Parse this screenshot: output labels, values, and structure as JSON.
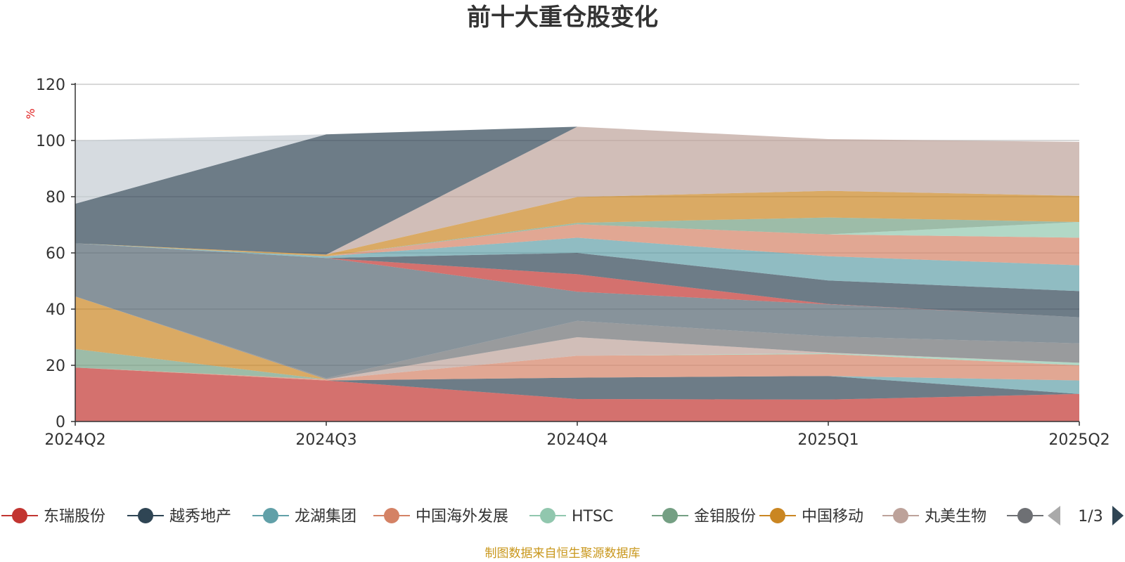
{
  "chart_data": {
    "type": "area",
    "stacked": true,
    "title": "前十大重仓股变化",
    "ylabel": "%",
    "ylim": [
      0,
      120
    ],
    "yticks": [
      0,
      20,
      40,
      60,
      80,
      100,
      120
    ],
    "grid": true,
    "categories": [
      "2024Q2",
      "2024Q3",
      "2024Q4",
      "2025Q1",
      "2025Q2"
    ],
    "series": [
      {
        "name": "东瑞股份",
        "color": "#c23531",
        "values": [
          19.2,
          14.6,
          8.0,
          7.8,
          9.8
        ]
      },
      {
        "name": "越秀地产",
        "color": "#2f4554",
        "values": [
          0,
          0,
          7.6,
          8.4,
          0
        ]
      },
      {
        "name": "龙湖集团",
        "color": "#61a0a8",
        "values": [
          0,
          0,
          0,
          0,
          4.8
        ]
      },
      {
        "name": "中国海外发展",
        "color": "#d48265",
        "values": [
          0,
          0.4,
          7.8,
          7.8,
          5.4
        ]
      },
      {
        "name": "HTSC",
        "color": "#91c7ae",
        "values": [
          0,
          0,
          0,
          0.3,
          0.9
        ]
      },
      {
        "name": "金钼股份",
        "color": "#749f83",
        "values": [
          6.6,
          0,
          0,
          0,
          0
        ]
      },
      {
        "name": "中国移动",
        "color": "#ca8622",
        "values": [
          18.7,
          0,
          0,
          0,
          0
        ]
      },
      {
        "name": "丸美生物",
        "color": "#bda29a",
        "values": [
          0,
          0,
          6.6,
          0.2,
          0
        ]
      },
      {
        "name": "",
        "color": "#6e7074",
        "values": [
          0,
          0.4,
          5.8,
          5.8,
          6.9
        ]
      },
      {
        "name": "",
        "color": "#546570",
        "values": [
          18.9,
          42.8,
          10.4,
          11.4,
          9.3
        ]
      },
      {
        "name": "",
        "color": "#c23531",
        "values": [
          0,
          0,
          6.2,
          0.1,
          0
        ]
      },
      {
        "name": "",
        "color": "#2f4554",
        "values": [
          0,
          0,
          7.6,
          8.4,
          9.3
        ]
      },
      {
        "name": "",
        "color": "#61a0a8",
        "values": [
          0,
          0.6,
          5.4,
          8.6,
          9.2
        ]
      },
      {
        "name": "",
        "color": "#d48265",
        "values": [
          0,
          0,
          4.8,
          7.8,
          9.8
        ]
      },
      {
        "name": "",
        "color": "#91c7ae",
        "values": [
          0,
          0,
          0,
          0,
          5.6
        ]
      },
      {
        "name": "",
        "color": "#749f83",
        "values": [
          0,
          0,
          0.5,
          6.0,
          0
        ]
      },
      {
        "name": "",
        "color": "#ca8622",
        "values": [
          0,
          0.6,
          9.2,
          9.5,
          9.3
        ]
      },
      {
        "name": "",
        "color": "#bda29a",
        "values": [
          0,
          0,
          25.0,
          18.4,
          19.2
        ]
      },
      {
        "name": "",
        "color": "#2f4554",
        "values": [
          14.1,
          42.8,
          0,
          0,
          0
        ]
      },
      {
        "name": "",
        "color": "#c4ccd3",
        "values": [
          22.5,
          0,
          0,
          0,
          0
        ]
      }
    ],
    "legend": {
      "position": "bottom",
      "items": [
        {
          "name": "东瑞股份",
          "color": "#c23531"
        },
        {
          "name": "越秀地产",
          "color": "#2f4554"
        },
        {
          "name": "龙湖集团",
          "color": "#61a0a8"
        },
        {
          "name": "中国海外发展",
          "color": "#d48265"
        },
        {
          "name": "HTSC",
          "color": "#91c7ae"
        },
        {
          "name": "金钼股份",
          "color": "#749f83"
        },
        {
          "name": "中国移动",
          "color": "#ca8622"
        },
        {
          "name": "丸美生物",
          "color": "#bda29a"
        },
        {
          "name": "",
          "color": "#6e7074"
        }
      ],
      "page": "1/3"
    },
    "source": "制图数据来自恒生聚源数据库"
  }
}
